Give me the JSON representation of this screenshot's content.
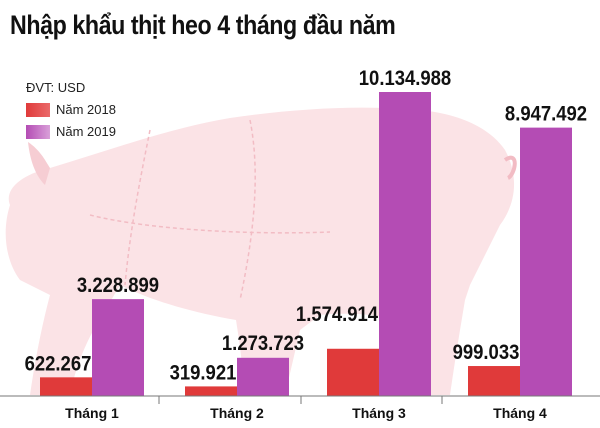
{
  "title": "Nhập khẩu thịt heo 4 tháng đầu năm",
  "unit_label": "ĐVT: USD",
  "colors": {
    "year2018": "#e03a3a",
    "year2019": "#b44cb4",
    "pig_background": "#fbe3e6"
  },
  "chart_data": {
    "type": "bar",
    "title": "Nhập khẩu thịt heo 4 tháng đầu năm",
    "unit": "ĐVT: USD",
    "categories": [
      "Tháng 1",
      "Tháng 2",
      "Tháng 3",
      "Tháng 4"
    ],
    "series": [
      {
        "name": "Năm 2018",
        "values": [
          622267,
          319921,
          1574914,
          999033
        ],
        "labels": [
          "622.267",
          "319.921",
          "1.574.914",
          "999.033"
        ]
      },
      {
        "name": "Năm 2019",
        "values": [
          3228899,
          1273723,
          10134988,
          8947492
        ],
        "labels": [
          "3.228.899",
          "1.273.723",
          "10.134.988",
          "8.947.492"
        ]
      }
    ],
    "legend_position": "top-left",
    "grid": false,
    "background_image": "pig-silhouette"
  }
}
